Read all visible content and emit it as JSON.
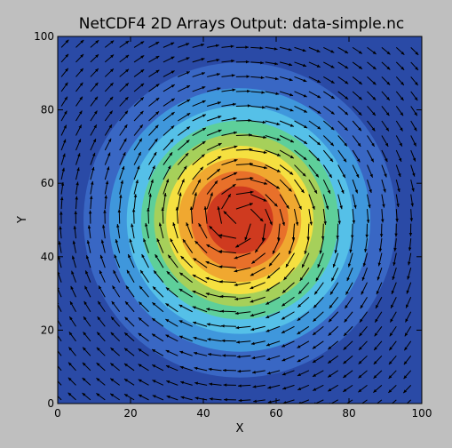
{
  "chart_data": {
    "type": "contourf-quiver",
    "title": "NetCDF4 2D Arrays Output: data-simple.nc",
    "xlabel": "X",
    "ylabel": "Y",
    "xlim": [
      0,
      100
    ],
    "ylim": [
      0,
      100
    ],
    "xticks": [
      "0",
      "20",
      "40",
      "60",
      "80",
      "100"
    ],
    "yticks": [
      "0",
      "20",
      "40",
      "60",
      "80",
      "100"
    ],
    "grid": false,
    "legend": "none",
    "center": [
      50,
      50
    ],
    "sigma": 20,
    "contour_levels": [
      0,
      0.1,
      0.2,
      0.3,
      0.4,
      0.5,
      0.6,
      0.7,
      0.8,
      0.9
    ],
    "contour_colors": [
      "#2a4aa6",
      "#3967c4",
      "#3f97dc",
      "#55c0e8",
      "#5ecf9a",
      "#a6d05a",
      "#f5e040",
      "#f0a830",
      "#e8702a",
      "#cf3a1f"
    ],
    "quiver_step": 4,
    "quiver_color": "#000000",
    "flow": "clockwise vortex centered at (50, 50)"
  }
}
